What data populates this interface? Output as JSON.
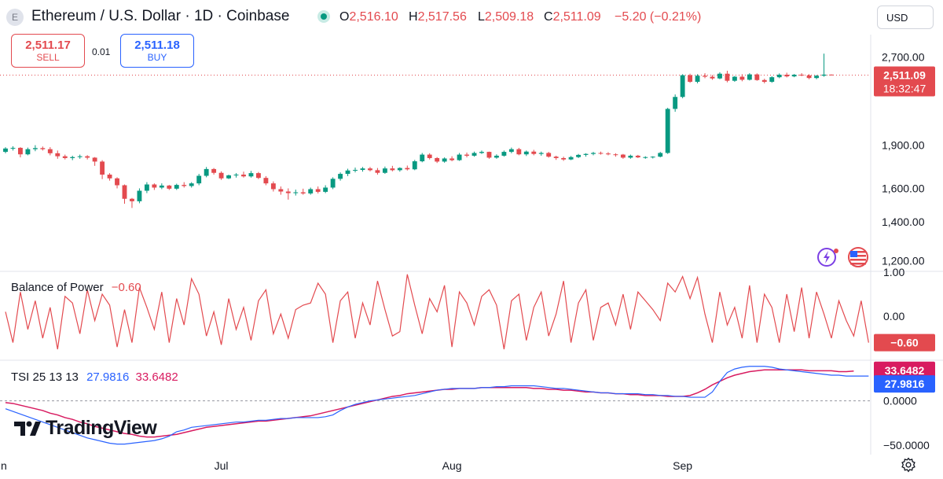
{
  "header": {
    "symbol_title": "Ethereum / U.S. Dollar · 1D · Coinbase",
    "logo_glyph": "E",
    "ohlc": [
      {
        "key": "O",
        "value": "2,516.10"
      },
      {
        "key": "H",
        "value": "2,517.56"
      },
      {
        "key": "L",
        "value": "2,509.18"
      },
      {
        "key": "C",
        "value": "2,511.09"
      }
    ],
    "change": "−5.20 (−0.21%)",
    "currency": "USD"
  },
  "trade": {
    "sell_price": "2,511.17",
    "sell_label": "SELL",
    "spread": "0.01",
    "buy_price": "2,511.18",
    "buy_label": "BUY"
  },
  "colors": {
    "up": "#089981",
    "down": "#e34a4f",
    "bop": "#e34a4f",
    "tsi": "#2962ff",
    "tsi_signal": "#d81b60",
    "grid": "#e0e3eb"
  },
  "indicators": {
    "bop": {
      "name": "Balance of Power",
      "value": "−0.60",
      "badge": "−0.60"
    },
    "tsi": {
      "name": "TSI 25 13 13",
      "value1": "27.9816",
      "value2": "33.6482",
      "badge1": "27.9816",
      "badge2": "33.6482"
    }
  },
  "price_badge": {
    "price": "2,511.09",
    "countdown": "18:32:47"
  },
  "brand": "TradingView",
  "icons": [
    "settings-icon",
    "ideas-icon",
    "flag-icon"
  ],
  "chart_data": [
    {
      "type": "candlestick",
      "title": "Ethereum / U.S. Dollar · 1D · Coinbase",
      "yscale": "log",
      "ylim": [
        1150,
        2950
      ],
      "y_ticks": [
        "2,700.00",
        "1,900.00",
        "1,600.00",
        "1,400.00",
        "1,200.00"
      ],
      "y_tick_values": [
        2700,
        1900,
        1600,
        1400,
        1200
      ],
      "x_labels": [
        "Jun",
        "Jul",
        "Aug",
        "Sep"
      ],
      "x_label_days": [
        -1,
        29,
        60,
        91
      ],
      "last_price": 2511.09,
      "candles": [
        [
          1850,
          1885,
          1840,
          1875
        ],
        [
          1875,
          1892,
          1860,
          1880
        ],
        [
          1880,
          1885,
          1810,
          1832
        ],
        [
          1832,
          1882,
          1825,
          1870
        ],
        [
          1870,
          1900,
          1855,
          1878
        ],
        [
          1878,
          1890,
          1860,
          1870
        ],
        [
          1870,
          1885,
          1825,
          1840
        ],
        [
          1840,
          1860,
          1800,
          1818
        ],
        [
          1818,
          1830,
          1795,
          1805
        ],
        [
          1805,
          1822,
          1790,
          1812
        ],
        [
          1812,
          1830,
          1800,
          1818
        ],
        [
          1818,
          1826,
          1795,
          1808
        ],
        [
          1808,
          1812,
          1750,
          1780
        ],
        [
          1780,
          1790,
          1660,
          1690
        ],
        [
          1690,
          1700,
          1650,
          1665
        ],
        [
          1665,
          1672,
          1600,
          1620
        ],
        [
          1620,
          1625,
          1505,
          1535
        ],
        [
          1535,
          1540,
          1480,
          1520
        ],
        [
          1520,
          1600,
          1508,
          1585
        ],
        [
          1585,
          1640,
          1570,
          1625
        ],
        [
          1625,
          1632,
          1590,
          1605
        ],
        [
          1605,
          1632,
          1595,
          1618
        ],
        [
          1618,
          1622,
          1590,
          1598
        ],
        [
          1598,
          1630,
          1590,
          1622
        ],
        [
          1622,
          1640,
          1605,
          1615
        ],
        [
          1615,
          1640,
          1605,
          1632
        ],
        [
          1632,
          1695,
          1620,
          1682
        ],
        [
          1682,
          1742,
          1672,
          1728
        ],
        [
          1728,
          1735,
          1690,
          1702
        ],
        [
          1702,
          1712,
          1655,
          1665
        ],
        [
          1665,
          1690,
          1660,
          1685
        ],
        [
          1685,
          1700,
          1670,
          1690
        ],
        [
          1690,
          1710,
          1670,
          1678
        ],
        [
          1678,
          1715,
          1670,
          1700
        ],
        [
          1700,
          1708,
          1660,
          1668
        ],
        [
          1668,
          1680,
          1620,
          1632
        ],
        [
          1632,
          1645,
          1580,
          1595
        ],
        [
          1595,
          1612,
          1560,
          1580
        ],
        [
          1580,
          1600,
          1530,
          1570
        ],
        [
          1570,
          1592,
          1555,
          1575
        ],
        [
          1575,
          1598,
          1560,
          1568
        ],
        [
          1568,
          1605,
          1560,
          1595
        ],
        [
          1595,
          1612,
          1568,
          1578
        ],
        [
          1578,
          1620,
          1570,
          1605
        ],
        [
          1605,
          1672,
          1595,
          1662
        ],
        [
          1662,
          1705,
          1650,
          1695
        ],
        [
          1695,
          1730,
          1680,
          1718
        ],
        [
          1718,
          1738,
          1705,
          1722
        ],
        [
          1722,
          1742,
          1710,
          1732
        ],
        [
          1732,
          1742,
          1712,
          1720
        ],
        [
          1720,
          1735,
          1690,
          1702
        ],
        [
          1702,
          1745,
          1695,
          1732
        ],
        [
          1732,
          1750,
          1712,
          1720
        ],
        [
          1720,
          1740,
          1710,
          1735
        ],
        [
          1735,
          1752,
          1718,
          1726
        ],
        [
          1726,
          1792,
          1720,
          1782
        ],
        [
          1782,
          1842,
          1775,
          1830
        ],
        [
          1830,
          1840,
          1795,
          1805
        ],
        [
          1805,
          1812,
          1770,
          1780
        ],
        [
          1780,
          1810,
          1772,
          1802
        ],
        [
          1802,
          1818,
          1782,
          1790
        ],
        [
          1790,
          1842,
          1785,
          1830
        ],
        [
          1830,
          1845,
          1810,
          1822
        ],
        [
          1822,
          1852,
          1815,
          1842
        ],
        [
          1842,
          1860,
          1835,
          1850
        ],
        [
          1850,
          1852,
          1800,
          1808
        ],
        [
          1808,
          1832,
          1800,
          1822
        ],
        [
          1822,
          1860,
          1815,
          1850
        ],
        [
          1850,
          1882,
          1840,
          1870
        ],
        [
          1870,
          1880,
          1825,
          1832
        ],
        [
          1832,
          1860,
          1820,
          1852
        ],
        [
          1852,
          1865,
          1825,
          1835
        ],
        [
          1835,
          1852,
          1822,
          1842
        ],
        [
          1842,
          1850,
          1808,
          1815
        ],
        [
          1815,
          1822,
          1792,
          1805
        ],
        [
          1805,
          1815,
          1785,
          1795
        ],
        [
          1795,
          1820,
          1790,
          1812
        ],
        [
          1812,
          1835,
          1805,
          1828
        ],
        [
          1828,
          1840,
          1815,
          1835
        ],
        [
          1835,
          1850,
          1825,
          1842
        ],
        [
          1842,
          1852,
          1830,
          1838
        ],
        [
          1838,
          1848,
          1825,
          1832
        ],
        [
          1832,
          1840,
          1815,
          1830
        ],
        [
          1830,
          1835,
          1800,
          1808
        ],
        [
          1808,
          1830,
          1800,
          1822
        ],
        [
          1822,
          1828,
          1805,
          1810
        ],
        [
          1810,
          1818,
          1800,
          1812
        ],
        [
          1812,
          1818,
          1802,
          1815
        ],
        [
          1815,
          1850,
          1810,
          1842
        ],
        [
          1842,
          2205,
          1835,
          2195
        ],
        [
          2195,
          2325,
          2170,
          2302
        ],
        [
          2302,
          2520,
          2290,
          2510
        ],
        [
          2510,
          2525,
          2435,
          2445
        ],
        [
          2445,
          2520,
          2430,
          2505
        ],
        [
          2505,
          2530,
          2480,
          2495
        ],
        [
          2495,
          2512,
          2465,
          2478
        ],
        [
          2478,
          2540,
          2470,
          2525
        ],
        [
          2525,
          2555,
          2440,
          2455
        ],
        [
          2455,
          2502,
          2445,
          2495
        ],
        [
          2495,
          2520,
          2450,
          2465
        ],
        [
          2465,
          2530,
          2458,
          2518
        ],
        [
          2518,
          2528,
          2455,
          2462
        ],
        [
          2462,
          2475,
          2430,
          2445
        ],
        [
          2445,
          2500,
          2435,
          2490
        ],
        [
          2490,
          2528,
          2480,
          2515
        ],
        [
          2515,
          2535,
          2488,
          2498
        ],
        [
          2498,
          2522,
          2490,
          2515
        ],
        [
          2515,
          2530,
          2500,
          2508
        ],
        [
          2508,
          2520,
          2470,
          2482
        ],
        [
          2482,
          2512,
          2470,
          2505
        ],
        [
          2505,
          2735,
          2495,
          2516
        ],
        [
          2516,
          2517.56,
          2509.18,
          2511.09
        ]
      ]
    },
    {
      "type": "line",
      "title": "Balance of Power",
      "ylim": [
        -1,
        1
      ],
      "y_ticks": [
        "1.00",
        "0.00"
      ],
      "y_tick_values": [
        1,
        0
      ],
      "values": [
        0.1,
        -0.6,
        0.55,
        -0.3,
        0.35,
        -0.5,
        0.2,
        -0.75,
        0.45,
        0.3,
        -0.4,
        0.6,
        -0.1,
        0.5,
        0.25,
        -0.7,
        0.15,
        -0.6,
        0.65,
        0.2,
        -0.3,
        0.55,
        -0.6,
        0.4,
        -0.2,
        0.85,
        0.5,
        -0.45,
        0.1,
        -0.65,
        0.4,
        -0.3,
        0.2,
        -0.55,
        0.35,
        0.6,
        -0.4,
        0.05,
        -0.5,
        0.15,
        0.25,
        0.3,
        0.75,
        0.5,
        -0.6,
        0.35,
        0.55,
        -0.5,
        0.3,
        -0.2,
        0.8,
        0.15,
        -0.45,
        -0.35,
        0.95,
        0.25,
        -0.4,
        0.4,
        0.1,
        0.7,
        -0.7,
        0.55,
        0.3,
        -0.2,
        0.45,
        0.6,
        0.25,
        -0.75,
        0.35,
        0.5,
        -0.55,
        0.2,
        0.55,
        -0.45,
        0.05,
        0.8,
        -0.6,
        0.3,
        0.6,
        -0.55,
        0.2,
        0.3,
        -0.2,
        0.5,
        -0.3,
        0.55,
        0.35,
        0.15,
        -0.1,
        0.75,
        0.55,
        0.9,
        0.4,
        0.88,
        0.05,
        -0.6,
        0.55,
        -0.2,
        0.2,
        -0.5,
        0.7,
        -0.6,
        0.5,
        0.2,
        -0.6,
        0.5,
        -0.35,
        0.65,
        -0.5,
        0.55,
        0.05,
        -0.5,
        0.35,
        -0.1,
        -0.45,
        0.35,
        -0.6
      ]
    },
    {
      "type": "line",
      "title": "TSI 25 13 13",
      "ylim": [
        -60,
        45
      ],
      "y_ticks": [
        "0.0000",
        "−50.0000"
      ],
      "y_tick_values": [
        0,
        -50
      ],
      "series": [
        {
          "name": "TSI",
          "values": [
            -9,
            -12,
            -15,
            -18,
            -21,
            -24,
            -27,
            -30,
            -33,
            -36,
            -39,
            -42,
            -44,
            -46,
            -48,
            -49,
            -49,
            -48,
            -47,
            -46,
            -45,
            -43,
            -40,
            -35,
            -33,
            -30,
            -29,
            -28,
            -27,
            -26,
            -25,
            -24,
            -24,
            -23,
            -22,
            -22,
            -21,
            -20,
            -20,
            -19,
            -19,
            -19,
            -19,
            -18,
            -16,
            -11,
            -7,
            -4,
            -2,
            0,
            1,
            2,
            3,
            4,
            5,
            6,
            8,
            10,
            12,
            13,
            14,
            14,
            14,
            14,
            15,
            15,
            16,
            16,
            17,
            17,
            17,
            17,
            16,
            15,
            14,
            14,
            13,
            12,
            11,
            10,
            9,
            9,
            8,
            8,
            8,
            8,
            7,
            7,
            6,
            6,
            5,
            5,
            4,
            4,
            4,
            10,
            22,
            32,
            36,
            38,
            39,
            39,
            39,
            38,
            36,
            35,
            34,
            33,
            32,
            31,
            30,
            29,
            29,
            28,
            28,
            28,
            28
          ]
        },
        {
          "name": "Signal",
          "values": [
            -2,
            -3,
            -5,
            -7,
            -9,
            -11,
            -14,
            -16,
            -19,
            -21,
            -24,
            -26,
            -29,
            -31,
            -33,
            -35,
            -37,
            -38,
            -40,
            -41,
            -41,
            -40,
            -39,
            -38,
            -36,
            -34,
            -32,
            -30,
            -29,
            -28,
            -27,
            -26,
            -25,
            -24,
            -23,
            -23,
            -22,
            -21,
            -20,
            -19,
            -18,
            -17,
            -15,
            -13,
            -11,
            -9,
            -7,
            -5,
            -3,
            -1,
            1,
            3,
            5,
            6,
            8,
            9,
            10,
            11,
            12,
            13,
            13,
            14,
            14,
            14,
            15,
            15,
            15,
            15,
            15,
            15,
            15,
            14,
            14,
            13,
            13,
            12,
            12,
            11,
            10,
            10,
            9,
            9,
            8,
            8,
            7,
            7,
            6,
            6,
            6,
            5,
            5,
            5,
            6,
            9,
            13,
            18,
            22,
            26,
            29,
            31,
            33,
            34,
            35,
            35,
            35,
            35,
            35,
            35,
            34,
            34,
            34,
            34,
            33,
            33,
            33.6482
          ]
        }
      ]
    }
  ]
}
